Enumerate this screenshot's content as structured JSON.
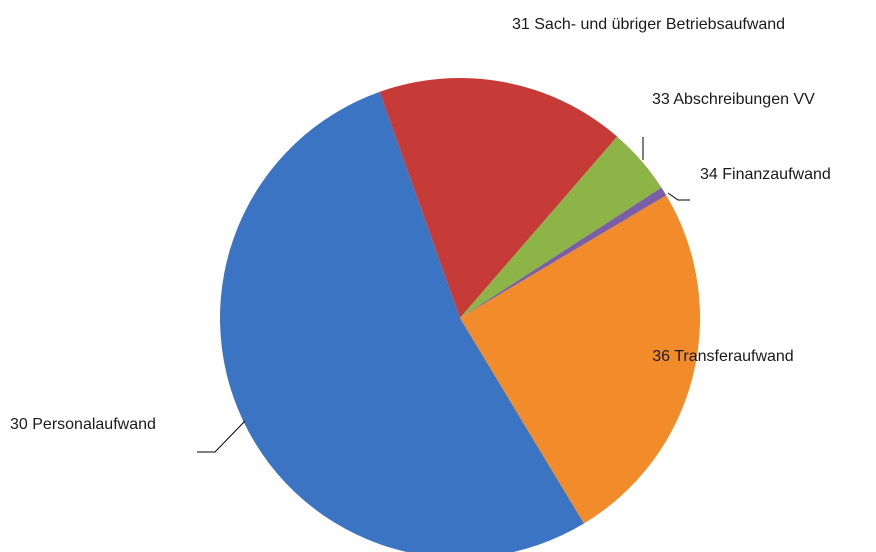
{
  "chart_data": {
    "type": "pie",
    "categories": [
      "30 Personalaufwand",
      "31 Sach- und übriger Betriebsaufwand",
      "33 Abschreibungen VV",
      "34 Finanzaufwand",
      "36 Transferaufwand"
    ],
    "values": [
      53.2,
      16.8,
      4.5,
      0.6,
      24.9
    ],
    "colors": [
      "#3b74c2",
      "#c63b38",
      "#8db446",
      "#7b5ea8",
      "#f28b2a"
    ]
  }
}
